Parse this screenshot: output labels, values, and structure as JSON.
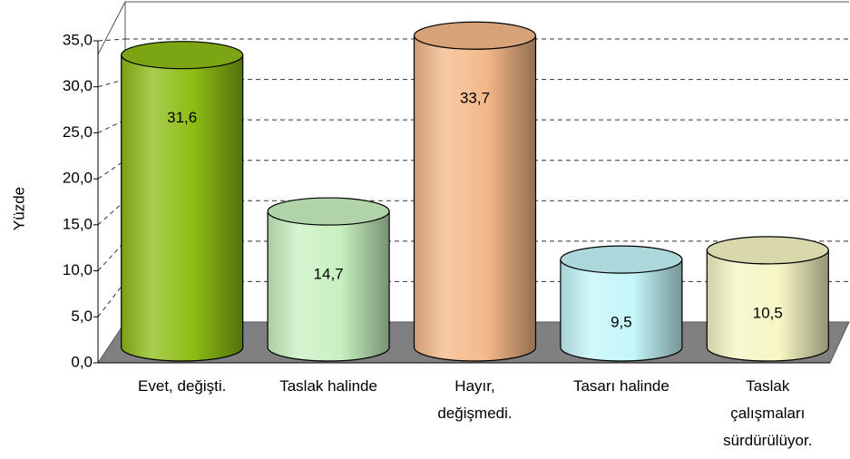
{
  "chart_data": {
    "type": "bar",
    "y_label": "Yüzde",
    "categories": [
      "Evet, değişti.",
      "Taslak halinde",
      "Hayır, değişmedi.",
      "Tasarı halinde",
      "Taslak çalışmaları sürdürülüyor."
    ],
    "values": [
      31.6,
      14.7,
      33.7,
      9.5,
      10.5
    ],
    "value_labels": [
      "31,6",
      "14,7",
      "33,7",
      "9,5",
      "10,5"
    ],
    "colors": [
      "#8cbc14",
      "#c8f0c0",
      "#f4b888",
      "#c4f6fa",
      "#f6f6c4"
    ],
    "ylim": [
      0,
      35
    ],
    "yticks": [
      {
        "value": 0,
        "label": "0,0"
      },
      {
        "value": 5,
        "label": "5,0"
      },
      {
        "value": 10,
        "label": "10,0"
      },
      {
        "value": 15,
        "label": "15,0"
      },
      {
        "value": 20,
        "label": "20,0"
      },
      {
        "value": 25,
        "label": "25,0"
      },
      {
        "value": 30,
        "label": "30,0"
      },
      {
        "value": 35,
        "label": "35,0"
      }
    ],
    "grid": true
  }
}
